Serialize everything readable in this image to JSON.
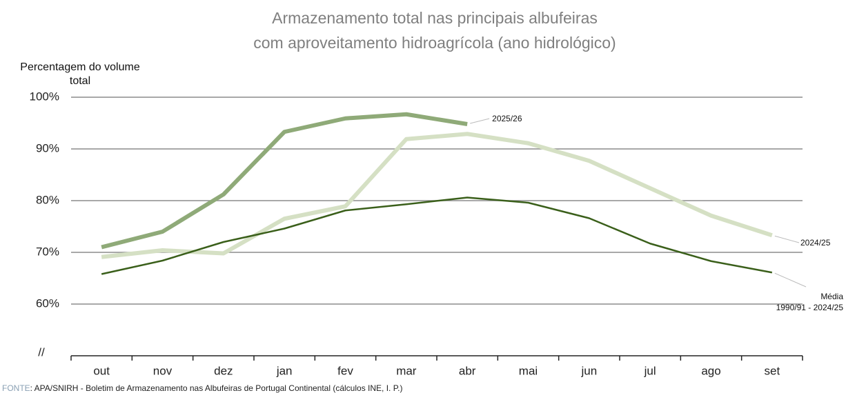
{
  "chart_data": {
    "type": "line",
    "title": "Armazenamento total nas principais albufeiras\ncom aproveitamento hidroagrícola (ano hidrológico)",
    "y_axis_label": "Percentagem do volume\ntotal",
    "axis_break": "//",
    "source_label": "FONTE",
    "source": ": APA/SNIRH - Boletim de Armazenamento nas Albufeiras de Portugal Continental (cálculos INE, I. P.)",
    "categories": [
      "out",
      "nov",
      "dez",
      "jan",
      "fev",
      "mar",
      "abr",
      "mai",
      "jun",
      "jul",
      "ago",
      "set"
    ],
    "ylim": [
      50,
      100
    ],
    "yticks": [
      {
        "value": 60,
        "label": "60%"
      },
      {
        "value": 70,
        "label": "70%"
      },
      {
        "value": 80,
        "label": "80%"
      },
      {
        "value": 90,
        "label": "90%"
      },
      {
        "value": 100,
        "label": "100%"
      }
    ],
    "grid": true,
    "series": [
      {
        "name": "2025/26",
        "color": "#8faa78",
        "values": [
          71.0,
          74.0,
          81.2,
          93.3,
          95.9,
          96.7,
          94.8,
          null,
          null,
          null,
          null,
          null
        ]
      },
      {
        "name": "2024/25",
        "color": "#d5e0c4",
        "values": [
          69.1,
          70.4,
          69.8,
          76.5,
          78.9,
          91.9,
          92.9,
          91.1,
          87.7,
          82.4,
          77.1,
          73.3
        ]
      },
      {
        "name": "Média\n1990/91 - 2024/25",
        "color": "#3a5f1a",
        "values": [
          65.8,
          68.4,
          72.0,
          74.6,
          78.1,
          79.3,
          80.6,
          79.6,
          76.6,
          71.7,
          68.3,
          66.1
        ]
      }
    ]
  }
}
